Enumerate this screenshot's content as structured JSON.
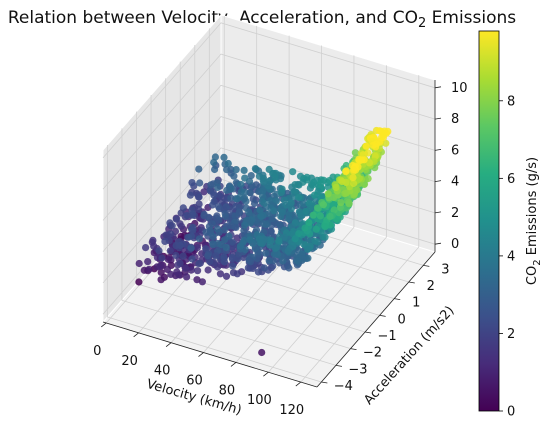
{
  "chart_data": {
    "type": "scatter",
    "projection": "3d",
    "title": {
      "pre": "Relation between Velocity, Acceleration, and CO",
      "sub": "2",
      "post": " Emissions"
    },
    "xlabel": "Velocity (km/h)",
    "ylabel": "Acceleration (m/s2)",
    "zlabel": "",
    "xticks": [
      "0",
      "20",
      "40",
      "60",
      "80",
      "100",
      "120"
    ],
    "yticks": [
      "−4",
      "−3",
      "−2",
      "−1",
      "0",
      "1",
      "2",
      "3"
    ],
    "zticks": [
      "0",
      "2",
      "4",
      "6",
      "8",
      "10"
    ],
    "xlim": [
      -2,
      130
    ],
    "ylim": [
      -4.3,
      3.8
    ],
    "zlim": [
      -0.5,
      10.5
    ],
    "grid": true,
    "colormap": "viridis",
    "colorbar": {
      "label": {
        "pre": "CO",
        "sub": "2",
        "post": " Emissions (g/s)"
      },
      "ticks": [
        "0",
        "2",
        "4",
        "6",
        "8"
      ],
      "range": [
        0,
        9.8
      ]
    },
    "estimated_point_count": 3000,
    "point_cloud_summary": [
      {
        "velocity_range": [
          0,
          20
        ],
        "acceleration_range": [
          -2,
          2
        ],
        "co2_range": [
          0,
          3
        ]
      },
      {
        "velocity_range": [
          20,
          80
        ],
        "acceleration_range": [
          -3,
          3
        ],
        "co2_range": [
          0,
          4
        ]
      },
      {
        "velocity_range": [
          80,
          110
        ],
        "acceleration_range": [
          -2,
          2.5
        ],
        "co2_range": [
          1,
          6
        ]
      },
      {
        "velocity_range": [
          100,
          130
        ],
        "acceleration_range": [
          0,
          2.5
        ],
        "co2_range": [
          5,
          9.8
        ]
      }
    ],
    "outlier_points": [
      {
        "velocity": 95,
        "acceleration": -4.2,
        "co2": 0.5
      }
    ]
  }
}
